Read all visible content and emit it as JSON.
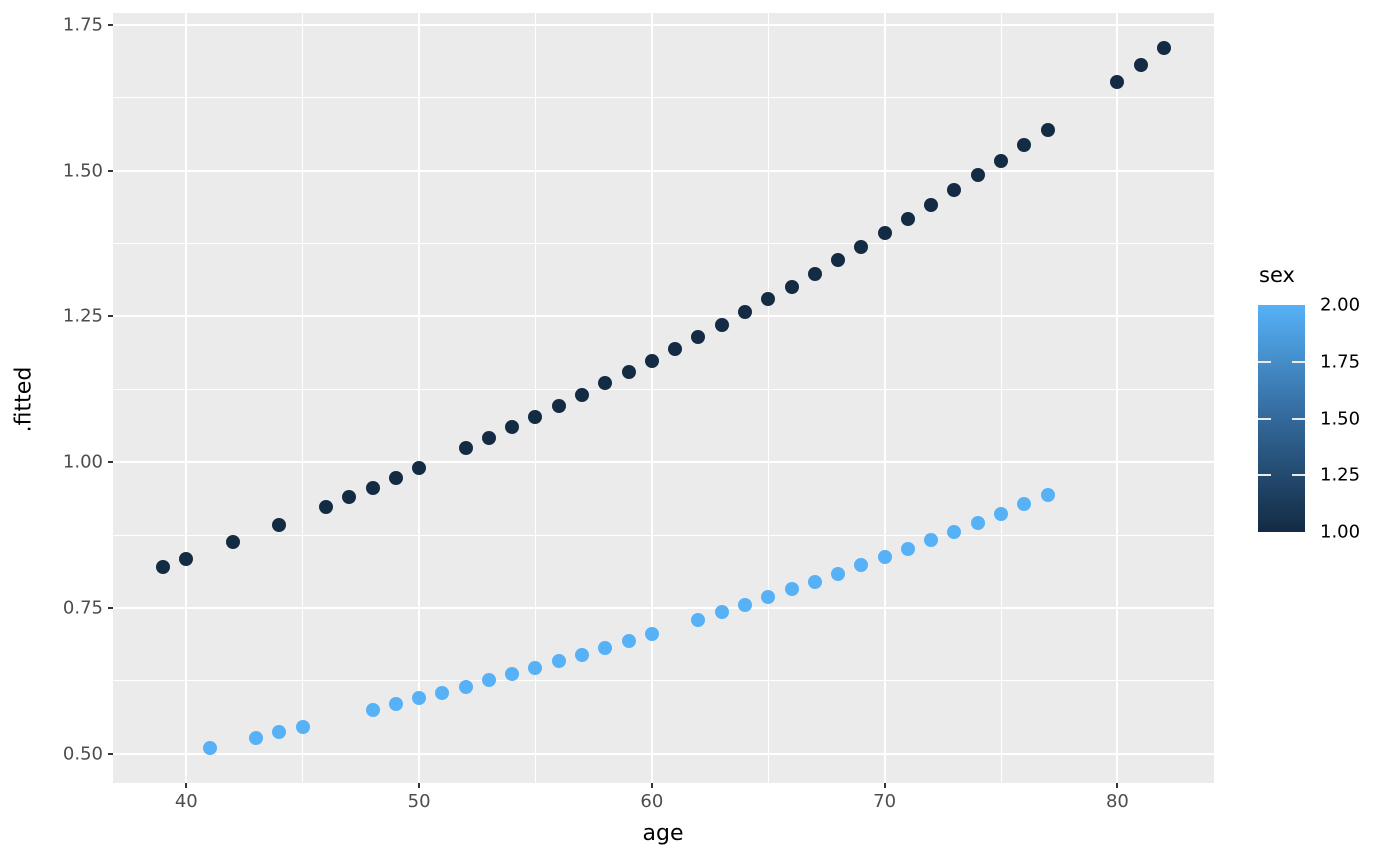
{
  "chart_data": {
    "type": "scatter",
    "title": "",
    "xlabel": "age",
    "ylabel": ".fitted",
    "xlim": [
      36.85,
      84.15
    ],
    "ylim": [
      0.45,
      1.77
    ],
    "grid": true,
    "panel_bg": "#EBEBEB",
    "grid_color": "#FFFFFF",
    "x_ticks": {
      "values": [
        40,
        50,
        60,
        70,
        80
      ],
      "labels": [
        "40",
        "50",
        "60",
        "70",
        "80"
      ]
    },
    "x_minor_ticks": [
      45,
      55,
      65,
      75
    ],
    "y_ticks": {
      "values": [
        0.5,
        0.75,
        1.0,
        1.25,
        1.5,
        1.75
      ],
      "labels": [
        "0.50",
        "0.75",
        "1.00",
        "1.25",
        "1.50",
        "1.75"
      ]
    },
    "y_minor_ticks": [
      0.625,
      0.875,
      1.125,
      1.375,
      1.625
    ],
    "series": [
      {
        "name": "sex = 1",
        "color": "#132B43",
        "points": [
          [
            39,
            0.82
          ],
          [
            40,
            0.834
          ],
          [
            42,
            0.863
          ],
          [
            44,
            0.893
          ],
          [
            46,
            0.924
          ],
          [
            47,
            0.94
          ],
          [
            48,
            0.956
          ],
          [
            49,
            0.973
          ],
          [
            50,
            0.99
          ],
          [
            52,
            1.024
          ],
          [
            53,
            1.042
          ],
          [
            54,
            1.06
          ],
          [
            55,
            1.078
          ],
          [
            56,
            1.096
          ],
          [
            57,
            1.115
          ],
          [
            58,
            1.135
          ],
          [
            59,
            1.154
          ],
          [
            60,
            1.174
          ],
          [
            61,
            1.194
          ],
          [
            62,
            1.215
          ],
          [
            63,
            1.236
          ],
          [
            64,
            1.257
          ],
          [
            65,
            1.279
          ],
          [
            66,
            1.301
          ],
          [
            67,
            1.323
          ],
          [
            68,
            1.346
          ],
          [
            69,
            1.369
          ],
          [
            70,
            1.393
          ],
          [
            71,
            1.417
          ],
          [
            72,
            1.441
          ],
          [
            73,
            1.466
          ],
          [
            74,
            1.492
          ],
          [
            75,
            1.517
          ],
          [
            76,
            1.543
          ],
          [
            77,
            1.57
          ],
          [
            80,
            1.652
          ],
          [
            81,
            1.681
          ],
          [
            82,
            1.71
          ]
        ]
      },
      {
        "name": "sex = 2",
        "color": "#56B1F7",
        "points": [
          [
            41,
            0.51
          ],
          [
            43,
            0.528
          ],
          [
            44,
            0.537
          ],
          [
            45,
            0.546
          ],
          [
            48,
            0.575
          ],
          [
            49,
            0.585
          ],
          [
            50,
            0.595
          ],
          [
            51,
            0.605
          ],
          [
            52,
            0.615
          ],
          [
            53,
            0.626
          ],
          [
            54,
            0.637
          ],
          [
            55,
            0.648
          ],
          [
            56,
            0.659
          ],
          [
            57,
            0.67
          ],
          [
            58,
            0.682
          ],
          [
            59,
            0.694
          ],
          [
            60,
            0.706
          ],
          [
            62,
            0.73
          ],
          [
            63,
            0.743
          ],
          [
            64,
            0.755
          ],
          [
            65,
            0.769
          ],
          [
            66,
            0.782
          ],
          [
            67,
            0.795
          ],
          [
            68,
            0.809
          ],
          [
            69,
            0.823
          ],
          [
            70,
            0.837
          ],
          [
            71,
            0.852
          ],
          [
            72,
            0.866
          ],
          [
            73,
            0.881
          ],
          [
            74,
            0.896
          ],
          [
            75,
            0.912
          ],
          [
            76,
            0.928
          ],
          [
            77,
            0.944
          ]
        ]
      }
    ],
    "legend": {
      "title": "sex",
      "position": "right",
      "style": "colorbar",
      "limits": [
        1.0,
        2.0
      ],
      "breaks": {
        "values": [
          2.0,
          1.75,
          1.5,
          1.25,
          1.0
        ],
        "labels": [
          "2.00",
          "1.75",
          "1.50",
          "1.25",
          "1.00"
        ]
      },
      "color_high": "#56B1F7",
      "color_mid": "#33699B",
      "color_low": "#132B43"
    }
  }
}
